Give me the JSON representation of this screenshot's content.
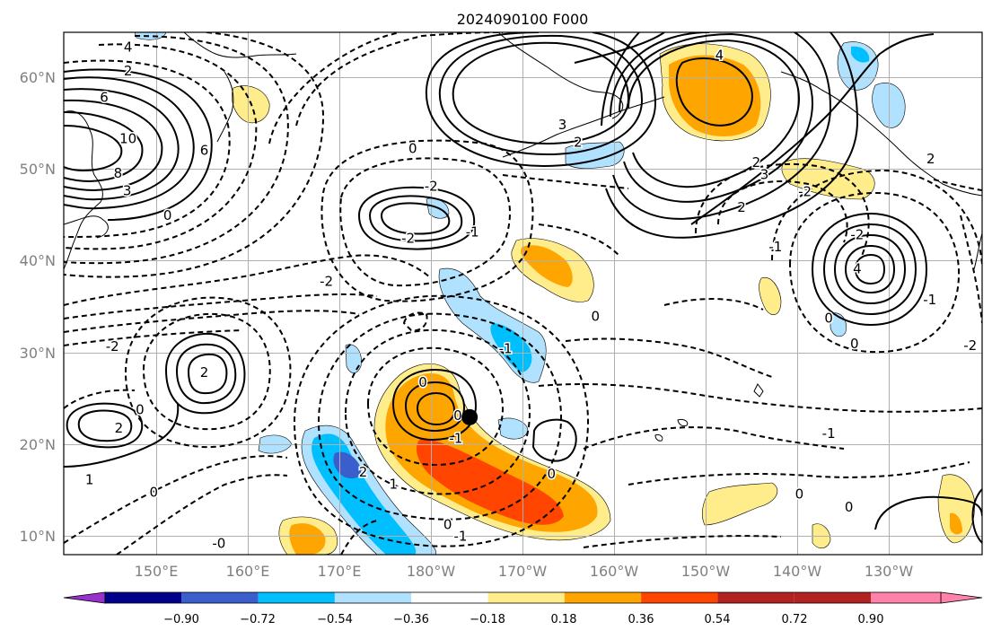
{
  "title": "2024090100 F000",
  "map": {
    "lat_labels": [
      "60°N",
      "50°N",
      "40°N",
      "30°N",
      "20°N",
      "10°N"
    ],
    "lon_labels": [
      "150°E",
      "160°E",
      "170°E",
      "180°W",
      "170°W",
      "160°W",
      "150°W",
      "140°W",
      "130°W"
    ],
    "extent": {
      "lon_min": 140,
      "lon_max": 240,
      "lat_min": 8,
      "lat_max": 65
    },
    "grid": true,
    "marker": {
      "lon": 184.2,
      "lat": 23.0
    }
  },
  "colorbar": {
    "tick_labels": [
      "−0.90",
      "−0.72",
      "−0.54",
      "−0.36",
      "−0.18",
      "0.18",
      "0.36",
      "0.54",
      "0.72",
      "0.90"
    ],
    "colors": [
      "#9932cc",
      "#00008b",
      "#3a5fcd",
      "#00bfff",
      "#b0e2ff",
      "#ffffff",
      "#ffec8b",
      "#ffa500",
      "#ff4500",
      "#b22222",
      "#ff82ab"
    ],
    "extend": "both"
  },
  "contour_labels": [
    {
      "t": "4",
      "lon": 147,
      "lat": 63.4
    },
    {
      "t": "2",
      "lon": 147,
      "lat": 60.8
    },
    {
      "t": "6",
      "lon": 144.4,
      "lat": 57.9
    },
    {
      "t": "10",
      "lon": 147,
      "lat": 53.4
    },
    {
      "t": "8",
      "lon": 145.9,
      "lat": 49.6
    },
    {
      "t": "3",
      "lon": 146.9,
      "lat": 47.7
    },
    {
      "t": "0",
      "lon": 151.3,
      "lat": 45
    },
    {
      "t": "6",
      "lon": 155.3,
      "lat": 52.1
    },
    {
      "t": "0",
      "lon": 178,
      "lat": 52.3
    },
    {
      "t": "-2",
      "lon": 168.6,
      "lat": 37.8
    },
    {
      "t": "-2",
      "lon": 180,
      "lat": 48.2
    },
    {
      "t": "-2",
      "lon": 177.5,
      "lat": 42.5
    },
    {
      "t": "-1",
      "lon": 184.5,
      "lat": 43.2
    },
    {
      "t": "3",
      "lon": 194.3,
      "lat": 54.9
    },
    {
      "t": "2",
      "lon": 196,
      "lat": 53
    },
    {
      "t": "4",
      "lon": 211.4,
      "lat": 62.5
    },
    {
      "t": "2",
      "lon": 215.4,
      "lat": 50.8
    },
    {
      "t": "2",
      "lon": 213.8,
      "lat": 45.9
    },
    {
      "t": "-2",
      "lon": 220.7,
      "lat": 47.6
    },
    {
      "t": "-2",
      "lon": 226.4,
      "lat": 42.9
    },
    {
      "t": "-1",
      "lon": 217.5,
      "lat": 41.6
    },
    {
      "t": "2",
      "lon": 234.4,
      "lat": 51.2
    },
    {
      "t": "3",
      "lon": 216.3,
      "lat": 49.5
    },
    {
      "t": "4",
      "lon": 226.4,
      "lat": 39.2
    },
    {
      "t": "0",
      "lon": 223.3,
      "lat": 33.8
    },
    {
      "t": "0",
      "lon": 226.1,
      "lat": 31
    },
    {
      "t": "-2",
      "lon": 238.7,
      "lat": 30.8
    },
    {
      "t": "-1",
      "lon": 234.3,
      "lat": 35.8
    },
    {
      "t": "-1",
      "lon": 188.1,
      "lat": 30.5
    },
    {
      "t": "-2",
      "lon": 145.3,
      "lat": 30.7
    },
    {
      "t": "2",
      "lon": 155.3,
      "lat": 27.9
    },
    {
      "t": "0",
      "lon": 148.3,
      "lat": 23.8
    },
    {
      "t": "2",
      "lon": 146,
      "lat": 21.8
    },
    {
      "t": "1",
      "lon": 142.8,
      "lat": 16.2
    },
    {
      "t": "0",
      "lon": 149.8,
      "lat": 14.8
    },
    {
      "t": "2",
      "lon": 172.6,
      "lat": 17
    },
    {
      "t": "1",
      "lon": 175.9,
      "lat": 15.7
    },
    {
      "t": "0",
      "lon": 179.1,
      "lat": 26.8
    },
    {
      "t": "-1",
      "lon": 182.7,
      "lat": 20.7
    },
    {
      "t": "0",
      "lon": 182.9,
      "lat": 23.2
    },
    {
      "t": "0",
      "lon": 193.1,
      "lat": 16.8
    },
    {
      "t": "0",
      "lon": 181.8,
      "lat": 11.3
    },
    {
      "t": "-1",
      "lon": 183.2,
      "lat": 10
    },
    {
      "t": "-0",
      "lon": 156.9,
      "lat": 9.2
    },
    {
      "t": "-1",
      "lon": 223.3,
      "lat": 21.2
    },
    {
      "t": "0",
      "lon": 220.1,
      "lat": 14.6
    },
    {
      "t": "0",
      "lon": 225.5,
      "lat": 13.2
    },
    {
      "t": "0",
      "lon": 197.9,
      "lat": 34
    }
  ]
}
